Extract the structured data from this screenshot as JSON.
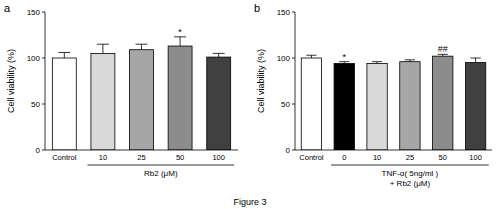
{
  "chart_data": [
    {
      "type": "bar",
      "label": "a",
      "ylabel": "Cell viability (%)",
      "categories": [
        "Control",
        "10",
        "25",
        "50",
        "100"
      ],
      "group_label": "Rb2 (μM)",
      "group_start": 1,
      "values": [
        100,
        105,
        109,
        113,
        101
      ],
      "errors": [
        6,
        10,
        6,
        10,
        4
      ],
      "annotations": [
        null,
        null,
        null,
        "*",
        null
      ],
      "colors": [
        "#ffffff",
        "#d9d9d9",
        "#a6a6a6",
        "#8c8c8c",
        "#404040"
      ],
      "ylim": [
        0,
        150
      ],
      "yticks": [
        0,
        50,
        100,
        150
      ]
    },
    {
      "type": "bar",
      "label": "b",
      "ylabel": "Cell viability (%)",
      "categories": [
        "Control",
        "0",
        "10",
        "25",
        "50",
        "100"
      ],
      "group_label": [
        "TNF-α( 5ng/ml )",
        "+ Rb2  (μM)"
      ],
      "group_start": 1,
      "values": [
        100,
        94,
        94,
        96,
        102,
        95
      ],
      "errors": [
        3,
        2,
        2,
        2,
        2,
        5
      ],
      "annotations": [
        null,
        "*",
        null,
        null,
        "##",
        null
      ],
      "colors": [
        "#ffffff",
        "#000000",
        "#d9d9d9",
        "#a6a6a6",
        "#8c8c8c",
        "#404040"
      ],
      "ylim": [
        0,
        150
      ],
      "yticks": [
        0,
        50,
        100,
        150
      ]
    }
  ],
  "caption": "Figure 3"
}
